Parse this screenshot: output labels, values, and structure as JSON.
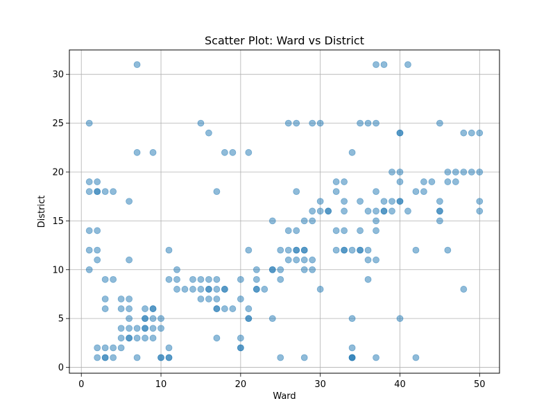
{
  "chart_data": {
    "type": "scatter",
    "title": "Scatter Plot: Ward vs District",
    "xlabel": "Ward",
    "ylabel": "District",
    "xlim": [
      -1.5,
      52.5
    ],
    "ylim": [
      -0.6,
      32.5
    ],
    "xticks": [
      0,
      10,
      20,
      30,
      40,
      50
    ],
    "yticks": [
      0,
      5,
      10,
      15,
      20,
      25,
      30
    ],
    "xtick_labels": [
      "0",
      "10",
      "20",
      "30",
      "40",
      "50"
    ],
    "ytick_labels": [
      "0",
      "5",
      "10",
      "15",
      "20",
      "25",
      "30"
    ],
    "grid": true,
    "legend": "none",
    "marker_color": "#1f77b4",
    "marker_alpha": 0.5,
    "series": [
      {
        "x": [
          1,
          1,
          1,
          1,
          1,
          1,
          2,
          2,
          2,
          2,
          2,
          2,
          2,
          2,
          3,
          3,
          3,
          3,
          3,
          3,
          3,
          4,
          4,
          4,
          4,
          5,
          5,
          5,
          5,
          5,
          6,
          6,
          6,
          6,
          6,
          6,
          6,
          6,
          7,
          7,
          7,
          7,
          7,
          8,
          8,
          8,
          8,
          8,
          8,
          9,
          9,
          9,
          9,
          9,
          9,
          10,
          10,
          10,
          10,
          11,
          11,
          11,
          11,
          11,
          12,
          12,
          12,
          13,
          14,
          14,
          15,
          15,
          15,
          15,
          16,
          16,
          16,
          16,
          16,
          17,
          17,
          17,
          17,
          17,
          17,
          17,
          18,
          18,
          18,
          18,
          19,
          19,
          20,
          20,
          20,
          20,
          20,
          21,
          21,
          21,
          21,
          21,
          22,
          22,
          22,
          22,
          23,
          24,
          24,
          24,
          24,
          25,
          25,
          25,
          25,
          26,
          26,
          26,
          26,
          27,
          27,
          27,
          27,
          27,
          27,
          28,
          28,
          28,
          28,
          28,
          28,
          29,
          29,
          29,
          29,
          29,
          30,
          30,
          30,
          30,
          31,
          31,
          32,
          32,
          32,
          32,
          33,
          33,
          33,
          33,
          33,
          33,
          34,
          34,
          34,
          34,
          34,
          34,
          34,
          35,
          35,
          35,
          35,
          35,
          36,
          36,
          36,
          36,
          36,
          37,
          37,
          37,
          37,
          37,
          37,
          37,
          37,
          38,
          38,
          38,
          38,
          39,
          39,
          39,
          40,
          40,
          40,
          40,
          40,
          40,
          40,
          41,
          41,
          42,
          42,
          42,
          43,
          43,
          44,
          45,
          45,
          45,
          45,
          45,
          46,
          46,
          46,
          47,
          47,
          48,
          48,
          48,
          49,
          49,
          50,
          50,
          50,
          50
        ],
        "y": [
          25,
          19,
          18,
          14,
          12,
          10,
          19,
          18,
          14,
          12,
          11,
          1,
          18,
          2,
          18,
          9,
          7,
          6,
          2,
          1,
          1,
          18,
          9,
          2,
          1,
          7,
          6,
          4,
          3,
          2,
          17,
          11,
          7,
          6,
          5,
          3,
          3,
          4,
          31,
          22,
          4,
          3,
          1,
          6,
          5,
          4,
          3,
          4,
          5,
          22,
          6,
          5,
          3,
          6,
          4,
          5,
          4,
          1,
          1,
          12,
          9,
          2,
          1,
          1,
          10,
          9,
          8,
          8,
          9,
          8,
          25,
          9,
          8,
          7,
          24,
          9,
          8,
          7,
          8,
          18,
          9,
          8,
          7,
          6,
          3,
          6,
          22,
          8,
          6,
          8,
          22,
          6,
          9,
          7,
          3,
          2,
          2,
          22,
          12,
          6,
          5,
          5,
          10,
          9,
          8,
          8,
          8,
          15,
          10,
          5,
          10,
          12,
          10,
          9,
          1,
          25,
          14,
          12,
          11,
          25,
          18,
          14,
          12,
          11,
          12,
          15,
          12,
          11,
          10,
          1,
          12,
          16,
          15,
          11,
          10,
          25,
          17,
          16,
          8,
          25,
          16,
          16,
          19,
          18,
          14,
          12,
          19,
          17,
          16,
          14,
          12,
          12,
          22,
          12,
          5,
          2,
          1,
          1,
          1,
          25,
          17,
          14,
          12,
          12,
          25,
          16,
          12,
          11,
          9,
          31,
          25,
          18,
          16,
          15,
          14,
          11,
          1,
          31,
          17,
          16,
          16,
          20,
          17,
          16,
          24,
          20,
          19,
          17,
          17,
          5,
          24,
          31,
          16,
          18,
          12,
          1,
          19,
          18,
          19,
          25,
          17,
          16,
          15,
          16,
          20,
          19,
          12,
          20,
          19,
          24,
          20,
          8,
          24,
          20,
          24,
          20,
          17,
          16
        ]
      }
    ]
  }
}
